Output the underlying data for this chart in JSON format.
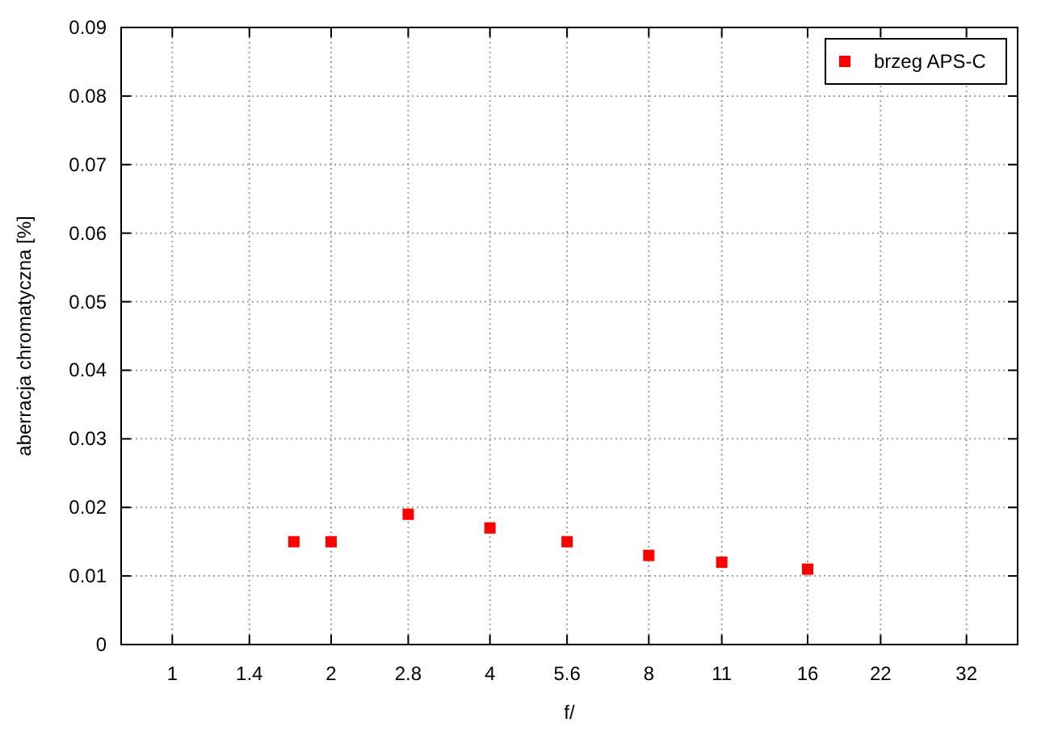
{
  "chart_data": {
    "type": "scatter",
    "xlabel": "f/",
    "ylabel": "aberracja chromatyczna [%]",
    "log": "x",
    "xlim": [
      0.8,
      40
    ],
    "xticks": [
      1,
      1.4,
      2,
      2.8,
      4,
      5.6,
      8,
      11,
      16,
      22,
      32
    ],
    "ylim": [
      0,
      0.09
    ],
    "yticks": [
      0,
      0.01,
      0.02,
      0.03,
      0.04,
      0.05,
      0.06,
      0.07,
      0.08,
      0.09
    ],
    "grid": true,
    "legend": "top right",
    "marker": "square",
    "series": [
      {
        "name": "brzeg APS-C",
        "color": "#ff0000",
        "x": [
          1.7,
          2,
          2.8,
          4,
          5.6,
          8,
          11,
          16
        ],
        "values": [
          0.015,
          0.015,
          0.019,
          0.017,
          0.015,
          0.013,
          0.012,
          0.011
        ]
      }
    ]
  }
}
